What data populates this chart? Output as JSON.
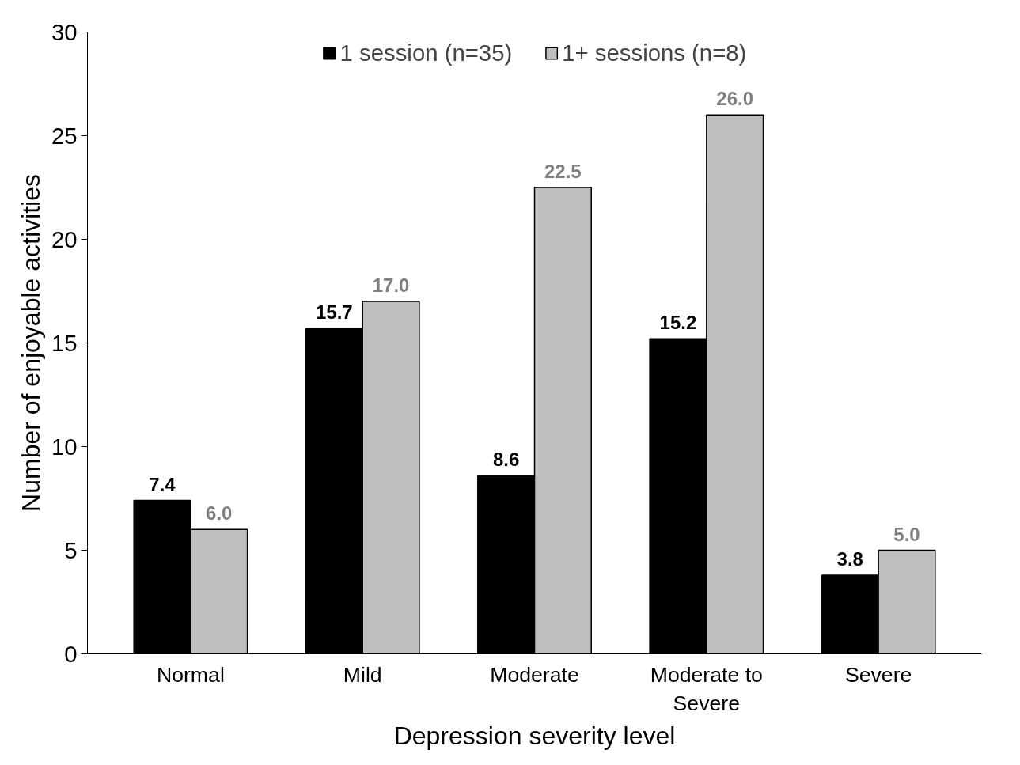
{
  "chart_data": {
    "type": "bar",
    "xlabel": "Depression severity level",
    "ylabel": "Number of enjoyable activities",
    "categories": [
      "Normal",
      "Mild",
      "Moderate",
      "Moderate to Severe",
      "Severe"
    ],
    "series": [
      {
        "name": "1 session (n=35)",
        "color": "#000000",
        "values": [
          7.4,
          15.7,
          8.6,
          15.2,
          3.8
        ],
        "value_labels": [
          "7.4",
          "15.7",
          "8.6",
          "15.2",
          "3.8"
        ]
      },
      {
        "name": "1+ sessions (n=8)",
        "color": "#bfbfbf",
        "values": [
          6.0,
          17.0,
          22.5,
          26.0,
          5.0
        ],
        "value_labels": [
          "6.0",
          "17.0",
          "22.5",
          "26.0",
          "5.0"
        ]
      }
    ],
    "ylim": [
      0,
      30
    ],
    "yticks": [
      0,
      5,
      10,
      15,
      20,
      25,
      30
    ],
    "grid": false,
    "legend": "top"
  }
}
